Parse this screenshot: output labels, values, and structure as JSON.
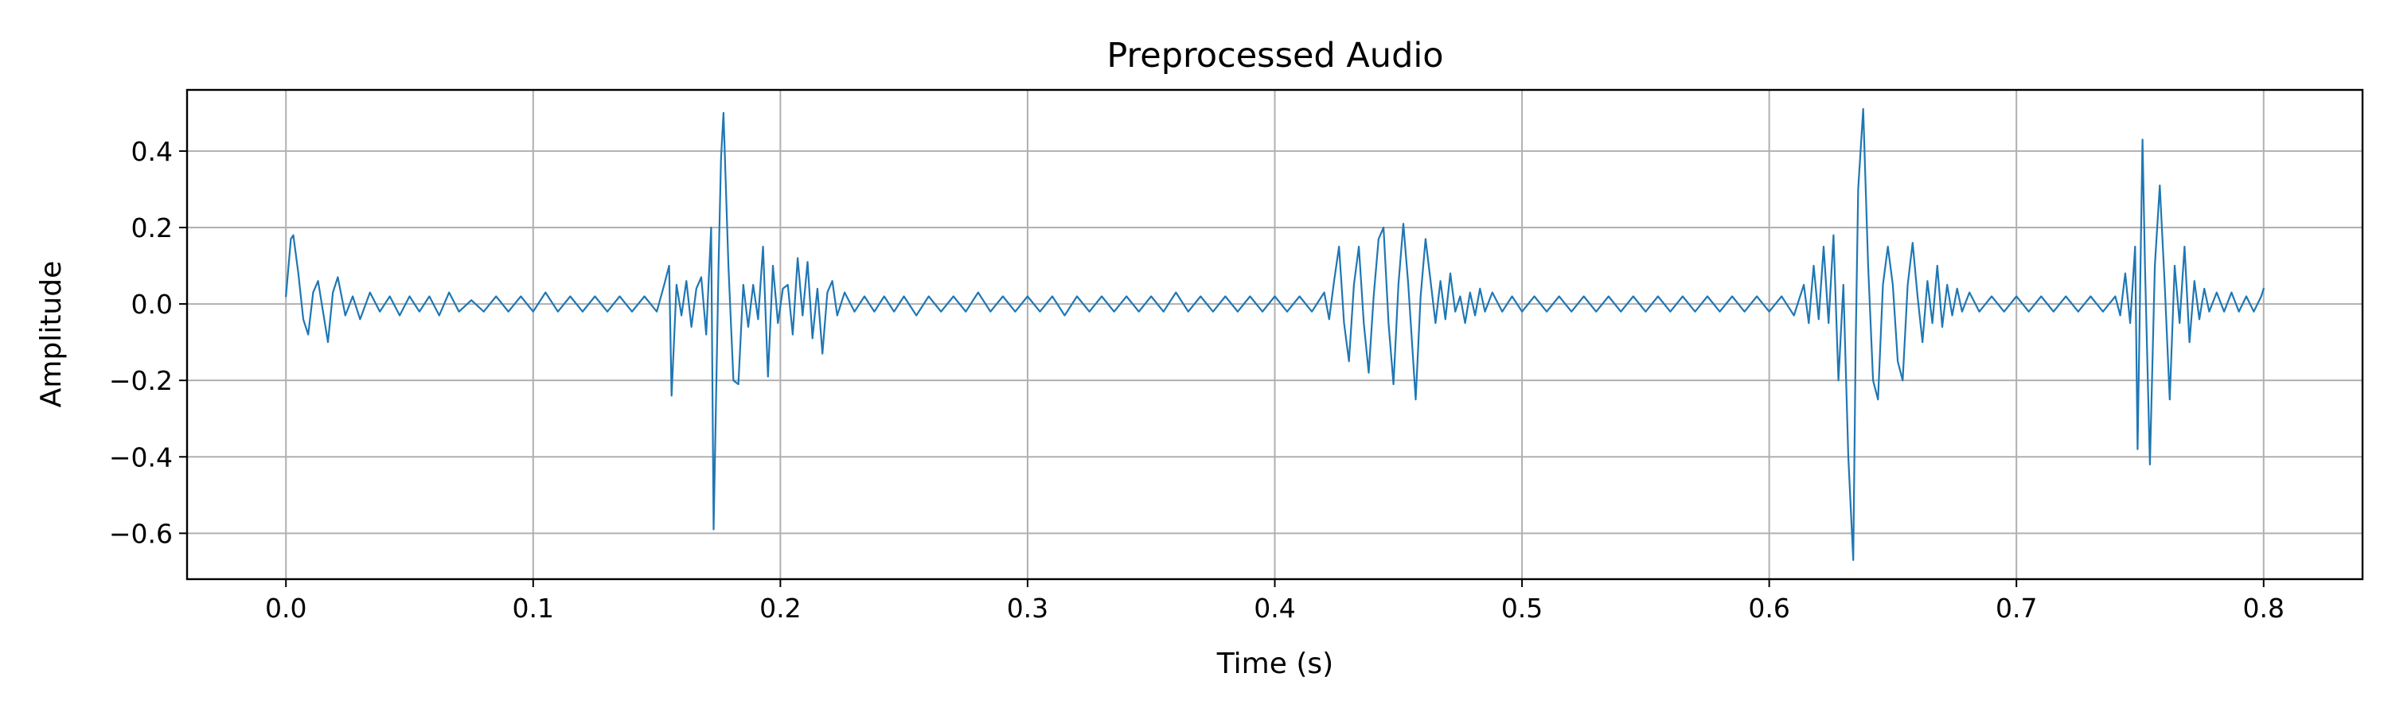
{
  "chart_data": {
    "type": "line",
    "title": "Preprocessed Audio",
    "xlabel": "Time (s)",
    "ylabel": "Amplitude",
    "xlim": [
      -0.04,
      0.84
    ],
    "ylim": [
      -0.72,
      0.56
    ],
    "x_ticks": [
      {
        "value": 0.0,
        "label": "0.0"
      },
      {
        "value": 0.1,
        "label": "0.1"
      },
      {
        "value": 0.2,
        "label": "0.2"
      },
      {
        "value": 0.3,
        "label": "0.3"
      },
      {
        "value": 0.4,
        "label": "0.4"
      },
      {
        "value": 0.5,
        "label": "0.5"
      },
      {
        "value": 0.6,
        "label": "0.6"
      },
      {
        "value": 0.7,
        "label": "0.7"
      },
      {
        "value": 0.8,
        "label": "0.8"
      }
    ],
    "y_ticks": [
      {
        "value": 0.4,
        "label": "0.4"
      },
      {
        "value": 0.2,
        "label": "0.2"
      },
      {
        "value": 0.0,
        "label": "0.0"
      },
      {
        "value": -0.2,
        "label": "−0.2"
      },
      {
        "value": -0.4,
        "label": "−0.4"
      },
      {
        "value": -0.6,
        "label": "−0.6"
      }
    ],
    "grid": true,
    "legend": "none",
    "series": [
      {
        "color": "#1f77b4",
        "points": [
          [
            0.0,
            0.02
          ],
          [
            0.002,
            0.17
          ],
          [
            0.003,
            0.18
          ],
          [
            0.005,
            0.08
          ],
          [
            0.007,
            -0.04
          ],
          [
            0.009,
            -0.08
          ],
          [
            0.011,
            0.03
          ],
          [
            0.013,
            0.06
          ],
          [
            0.015,
            -0.02
          ],
          [
            0.017,
            -0.1
          ],
          [
            0.019,
            0.03
          ],
          [
            0.021,
            0.07
          ],
          [
            0.024,
            -0.03
          ],
          [
            0.027,
            0.02
          ],
          [
            0.03,
            -0.04
          ],
          [
            0.034,
            0.03
          ],
          [
            0.038,
            -0.02
          ],
          [
            0.042,
            0.02
          ],
          [
            0.046,
            -0.03
          ],
          [
            0.05,
            0.02
          ],
          [
            0.054,
            -0.02
          ],
          [
            0.058,
            0.02
          ],
          [
            0.062,
            -0.03
          ],
          [
            0.066,
            0.03
          ],
          [
            0.07,
            -0.02
          ],
          [
            0.075,
            0.01
          ],
          [
            0.08,
            -0.02
          ],
          [
            0.085,
            0.02
          ],
          [
            0.09,
            -0.02
          ],
          [
            0.095,
            0.02
          ],
          [
            0.1,
            -0.02
          ],
          [
            0.105,
            0.03
          ],
          [
            0.11,
            -0.02
          ],
          [
            0.115,
            0.02
          ],
          [
            0.12,
            -0.02
          ],
          [
            0.125,
            0.02
          ],
          [
            0.13,
            -0.02
          ],
          [
            0.135,
            0.02
          ],
          [
            0.14,
            -0.02
          ],
          [
            0.145,
            0.02
          ],
          [
            0.15,
            -0.02
          ],
          [
            0.153,
            0.05
          ],
          [
            0.155,
            0.1
          ],
          [
            0.156,
            -0.24
          ],
          [
            0.158,
            0.05
          ],
          [
            0.16,
            -0.03
          ],
          [
            0.162,
            0.06
          ],
          [
            0.164,
            -0.06
          ],
          [
            0.166,
            0.04
          ],
          [
            0.168,
            0.07
          ],
          [
            0.17,
            -0.08
          ],
          [
            0.172,
            0.2
          ],
          [
            0.173,
            -0.59
          ],
          [
            0.175,
            0.1
          ],
          [
            0.176,
            0.38
          ],
          [
            0.177,
            0.5
          ],
          [
            0.179,
            0.1
          ],
          [
            0.181,
            -0.2
          ],
          [
            0.183,
            -0.21
          ],
          [
            0.185,
            0.05
          ],
          [
            0.187,
            -0.06
          ],
          [
            0.189,
            0.05
          ],
          [
            0.191,
            -0.04
          ],
          [
            0.193,
            0.15
          ],
          [
            0.195,
            -0.19
          ],
          [
            0.197,
            0.1
          ],
          [
            0.199,
            -0.05
          ],
          [
            0.201,
            0.04
          ],
          [
            0.203,
            0.05
          ],
          [
            0.205,
            -0.08
          ],
          [
            0.207,
            0.12
          ],
          [
            0.209,
            -0.03
          ],
          [
            0.211,
            0.11
          ],
          [
            0.213,
            -0.09
          ],
          [
            0.215,
            0.04
          ],
          [
            0.217,
            -0.13
          ],
          [
            0.219,
            0.03
          ],
          [
            0.221,
            0.06
          ],
          [
            0.223,
            -0.03
          ],
          [
            0.226,
            0.03
          ],
          [
            0.23,
            -0.02
          ],
          [
            0.234,
            0.02
          ],
          [
            0.238,
            -0.02
          ],
          [
            0.242,
            0.02
          ],
          [
            0.246,
            -0.02
          ],
          [
            0.25,
            0.02
          ],
          [
            0.255,
            -0.03
          ],
          [
            0.26,
            0.02
          ],
          [
            0.265,
            -0.02
          ],
          [
            0.27,
            0.02
          ],
          [
            0.275,
            -0.02
          ],
          [
            0.28,
            0.03
          ],
          [
            0.285,
            -0.02
          ],
          [
            0.29,
            0.02
          ],
          [
            0.295,
            -0.02
          ],
          [
            0.3,
            0.02
          ],
          [
            0.305,
            -0.02
          ],
          [
            0.31,
            0.02
          ],
          [
            0.315,
            -0.03
          ],
          [
            0.32,
            0.02
          ],
          [
            0.325,
            -0.02
          ],
          [
            0.33,
            0.02
          ],
          [
            0.335,
            -0.02
          ],
          [
            0.34,
            0.02
          ],
          [
            0.345,
            -0.02
          ],
          [
            0.35,
            0.02
          ],
          [
            0.355,
            -0.02
          ],
          [
            0.36,
            0.03
          ],
          [
            0.365,
            -0.02
          ],
          [
            0.37,
            0.02
          ],
          [
            0.375,
            -0.02
          ],
          [
            0.38,
            0.02
          ],
          [
            0.385,
            -0.02
          ],
          [
            0.39,
            0.02
          ],
          [
            0.395,
            -0.02
          ],
          [
            0.4,
            0.02
          ],
          [
            0.405,
            -0.02
          ],
          [
            0.41,
            0.02
          ],
          [
            0.415,
            -0.02
          ],
          [
            0.42,
            0.03
          ],
          [
            0.422,
            -0.04
          ],
          [
            0.424,
            0.06
          ],
          [
            0.426,
            0.15
          ],
          [
            0.428,
            -0.05
          ],
          [
            0.43,
            -0.15
          ],
          [
            0.432,
            0.05
          ],
          [
            0.434,
            0.15
          ],
          [
            0.436,
            -0.05
          ],
          [
            0.438,
            -0.18
          ],
          [
            0.44,
            0.02
          ],
          [
            0.442,
            0.17
          ],
          [
            0.444,
            0.2
          ],
          [
            0.446,
            -0.05
          ],
          [
            0.448,
            -0.21
          ],
          [
            0.45,
            0.05
          ],
          [
            0.452,
            0.21
          ],
          [
            0.454,
            0.05
          ],
          [
            0.456,
            -0.15
          ],
          [
            0.457,
            -0.25
          ],
          [
            0.459,
            0.02
          ],
          [
            0.461,
            0.17
          ],
          [
            0.463,
            0.06
          ],
          [
            0.465,
            -0.05
          ],
          [
            0.467,
            0.06
          ],
          [
            0.469,
            -0.04
          ],
          [
            0.471,
            0.08
          ],
          [
            0.473,
            -0.02
          ],
          [
            0.475,
            0.02
          ],
          [
            0.477,
            -0.05
          ],
          [
            0.479,
            0.03
          ],
          [
            0.481,
            -0.03
          ],
          [
            0.483,
            0.04
          ],
          [
            0.485,
            -0.02
          ],
          [
            0.488,
            0.03
          ],
          [
            0.492,
            -0.02
          ],
          [
            0.496,
            0.02
          ],
          [
            0.5,
            -0.02
          ],
          [
            0.505,
            0.02
          ],
          [
            0.51,
            -0.02
          ],
          [
            0.515,
            0.02
          ],
          [
            0.52,
            -0.02
          ],
          [
            0.525,
            0.02
          ],
          [
            0.53,
            -0.02
          ],
          [
            0.535,
            0.02
          ],
          [
            0.54,
            -0.02
          ],
          [
            0.545,
            0.02
          ],
          [
            0.55,
            -0.02
          ],
          [
            0.555,
            0.02
          ],
          [
            0.56,
            -0.02
          ],
          [
            0.565,
            0.02
          ],
          [
            0.57,
            -0.02
          ],
          [
            0.575,
            0.02
          ],
          [
            0.58,
            -0.02
          ],
          [
            0.585,
            0.02
          ],
          [
            0.59,
            -0.02
          ],
          [
            0.595,
            0.02
          ],
          [
            0.6,
            -0.02
          ],
          [
            0.605,
            0.02
          ],
          [
            0.61,
            -0.03
          ],
          [
            0.614,
            0.05
          ],
          [
            0.616,
            -0.05
          ],
          [
            0.618,
            0.1
          ],
          [
            0.62,
            -0.04
          ],
          [
            0.622,
            0.15
          ],
          [
            0.624,
            -0.05
          ],
          [
            0.626,
            0.18
          ],
          [
            0.628,
            -0.2
          ],
          [
            0.63,
            0.05
          ],
          [
            0.632,
            -0.4
          ],
          [
            0.634,
            -0.67
          ],
          [
            0.635,
            -0.1
          ],
          [
            0.636,
            0.3
          ],
          [
            0.638,
            0.51
          ],
          [
            0.64,
            0.1
          ],
          [
            0.642,
            -0.2
          ],
          [
            0.644,
            -0.25
          ],
          [
            0.646,
            0.05
          ],
          [
            0.648,
            0.15
          ],
          [
            0.65,
            0.05
          ],
          [
            0.652,
            -0.15
          ],
          [
            0.654,
            -0.2
          ],
          [
            0.656,
            0.05
          ],
          [
            0.658,
            0.16
          ],
          [
            0.66,
            0.02
          ],
          [
            0.662,
            -0.1
          ],
          [
            0.664,
            0.06
          ],
          [
            0.666,
            -0.05
          ],
          [
            0.668,
            0.1
          ],
          [
            0.67,
            -0.06
          ],
          [
            0.672,
            0.05
          ],
          [
            0.674,
            -0.03
          ],
          [
            0.676,
            0.04
          ],
          [
            0.678,
            -0.02
          ],
          [
            0.681,
            0.03
          ],
          [
            0.685,
            -0.02
          ],
          [
            0.69,
            0.02
          ],
          [
            0.695,
            -0.02
          ],
          [
            0.7,
            0.02
          ],
          [
            0.705,
            -0.02
          ],
          [
            0.71,
            0.02
          ],
          [
            0.715,
            -0.02
          ],
          [
            0.72,
            0.02
          ],
          [
            0.725,
            -0.02
          ],
          [
            0.73,
            0.02
          ],
          [
            0.735,
            -0.02
          ],
          [
            0.74,
            0.02
          ],
          [
            0.742,
            -0.03
          ],
          [
            0.744,
            0.08
          ],
          [
            0.746,
            -0.05
          ],
          [
            0.748,
            0.15
          ],
          [
            0.749,
            -0.38
          ],
          [
            0.751,
            0.43
          ],
          [
            0.752,
            0.1
          ],
          [
            0.754,
            -0.42
          ],
          [
            0.756,
            0.1
          ],
          [
            0.758,
            0.31
          ],
          [
            0.76,
            0.05
          ],
          [
            0.762,
            -0.25
          ],
          [
            0.764,
            0.1
          ],
          [
            0.766,
            -0.05
          ],
          [
            0.768,
            0.15
          ],
          [
            0.77,
            -0.1
          ],
          [
            0.772,
            0.06
          ],
          [
            0.774,
            -0.04
          ],
          [
            0.776,
            0.04
          ],
          [
            0.778,
            -0.02
          ],
          [
            0.781,
            0.03
          ],
          [
            0.784,
            -0.02
          ],
          [
            0.787,
            0.03
          ],
          [
            0.79,
            -0.02
          ],
          [
            0.793,
            0.02
          ],
          [
            0.796,
            -0.02
          ],
          [
            0.799,
            0.02
          ],
          [
            0.8,
            0.04
          ]
        ]
      }
    ]
  }
}
